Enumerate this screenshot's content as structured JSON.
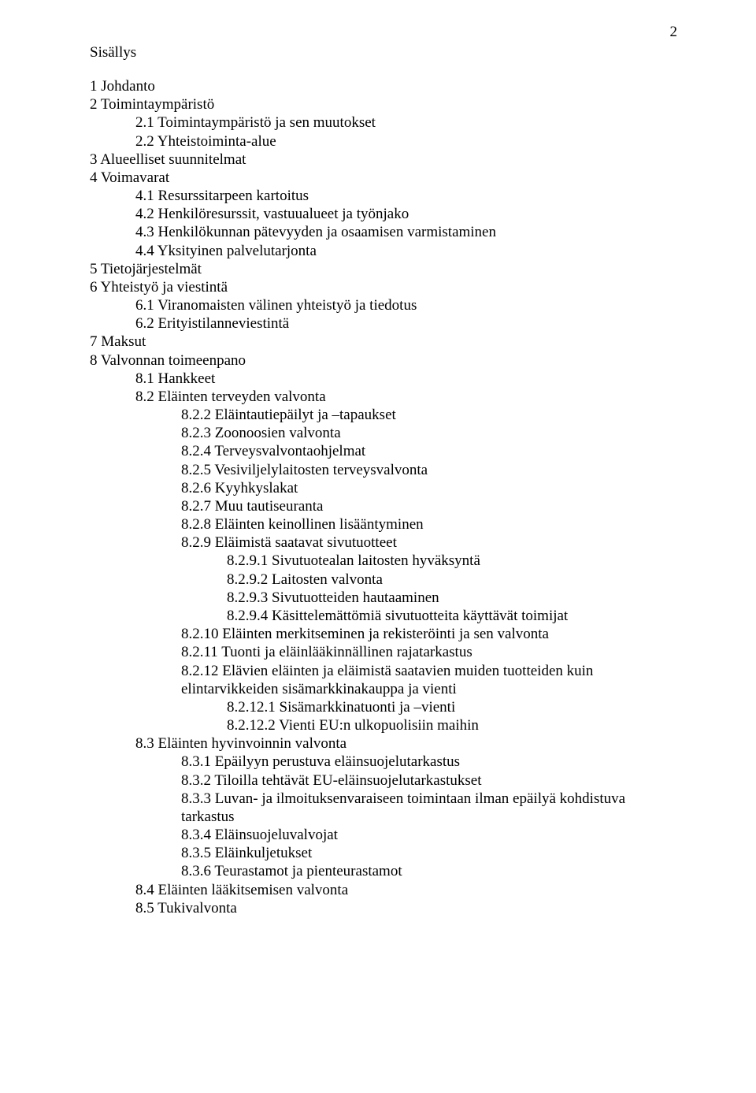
{
  "page_number": "2",
  "title": "Sisällys",
  "toc": [
    {
      "level": 0,
      "text": "1 Johdanto"
    },
    {
      "level": 0,
      "text": "2 Toimintaympäristö"
    },
    {
      "level": 1,
      "text": "2.1 Toimintaympäristö ja sen muutokset"
    },
    {
      "level": 1,
      "text": "2.2 Yhteistoiminta-alue"
    },
    {
      "level": 0,
      "text": "3 Alueelliset suunnitelmat"
    },
    {
      "level": 0,
      "text": "4 Voimavarat"
    },
    {
      "level": 1,
      "text": "4.1 Resurssitarpeen kartoitus"
    },
    {
      "level": 1,
      "text": "4.2 Henkilöresurssit, vastuualueet ja työnjako"
    },
    {
      "level": 1,
      "text": "4.3 Henkilökunnan pätevyyden ja osaamisen varmistaminen"
    },
    {
      "level": 1,
      "text": "4.4 Yksityinen palvelutarjonta"
    },
    {
      "level": 0,
      "text": "5 Tietojärjestelmät"
    },
    {
      "level": 0,
      "text": "6 Yhteistyö ja viestintä"
    },
    {
      "level": 1,
      "text": "6.1 Viranomaisten välinen yhteistyö ja tiedotus"
    },
    {
      "level": 1,
      "text": "6.2 Erityistilanneviestintä"
    },
    {
      "level": 0,
      "text": "7 Maksut"
    },
    {
      "level": 0,
      "text": "8 Valvonnan toimeenpano"
    },
    {
      "level": 1,
      "text": "8.1 Hankkeet"
    },
    {
      "level": 1,
      "text": "8.2 Eläinten terveyden valvonta"
    },
    {
      "level": 2,
      "text": "8.2.2 Eläintautiepäilyt ja –tapaukset"
    },
    {
      "level": 2,
      "text": "8.2.3 Zoonoosien valvonta"
    },
    {
      "level": 2,
      "text": "8.2.4 Terveysvalvontaohjelmat"
    },
    {
      "level": 2,
      "text": "8.2.5 Vesiviljelylaitosten terveysvalvonta"
    },
    {
      "level": 2,
      "text": "8.2.6 Kyyhkyslakat"
    },
    {
      "level": 2,
      "text": "8.2.7 Muu tautiseuranta"
    },
    {
      "level": 2,
      "text": "8.2.8 Eläinten keinollinen lisääntyminen"
    },
    {
      "level": 2,
      "text": "8.2.9 Eläimistä saatavat sivutuotteet"
    },
    {
      "level": 3,
      "text": "8.2.9.1 Sivutuotealan laitosten hyväksyntä"
    },
    {
      "level": 3,
      "text": "8.2.9.2 Laitosten valvonta"
    },
    {
      "level": 3,
      "text": "8.2.9.3 Sivutuotteiden hautaaminen"
    },
    {
      "level": 3,
      "text": "8.2.9.4 Käsittelemättömiä sivutuotteita käyttävät toimijat"
    },
    {
      "level": 2,
      "text": "8.2.10 Eläinten merkitseminen ja rekisteröinti ja sen valvonta"
    },
    {
      "level": 2,
      "text": "8.2.11 Tuonti ja eläinlääkinnällinen rajatarkastus"
    },
    {
      "level": 2,
      "text": "8.2.12 Elävien eläinten ja eläimistä saatavien muiden tuotteiden kuin elintarvikkeiden sisämarkkinakauppa ja vienti"
    },
    {
      "level": 3,
      "text": "8.2.12.1 Sisämarkkinatuonti ja –vienti"
    },
    {
      "level": 3,
      "text": "8.2.12.2 Vienti EU:n ulkopuolisiin maihin"
    },
    {
      "level": 1,
      "text": "8.3 Eläinten hyvinvoinnin valvonta"
    },
    {
      "level": 2,
      "text": "8.3.1 Epäilyyn perustuva eläinsuojelutarkastus"
    },
    {
      "level": 2,
      "text": "8.3.2 Tiloilla tehtävät EU-eläinsuojelutarkastukset"
    },
    {
      "level": 2,
      "text": "8.3.3 Luvan- ja ilmoituksenvaraiseen toimintaan ilman epäilyä kohdistuva tarkastus"
    },
    {
      "level": 2,
      "text": "8.3.4 Eläinsuojeluvalvojat"
    },
    {
      "level": 2,
      "text": "8.3.5 Eläinkuljetukset"
    },
    {
      "level": 2,
      "text": "8.3.6 Teurastamot ja pienteurastamot"
    },
    {
      "level": 1,
      "text": "8.4 Eläinten lääkitsemisen valvonta"
    },
    {
      "level": 1,
      "text": "8.5 Tukivalvonta"
    }
  ]
}
